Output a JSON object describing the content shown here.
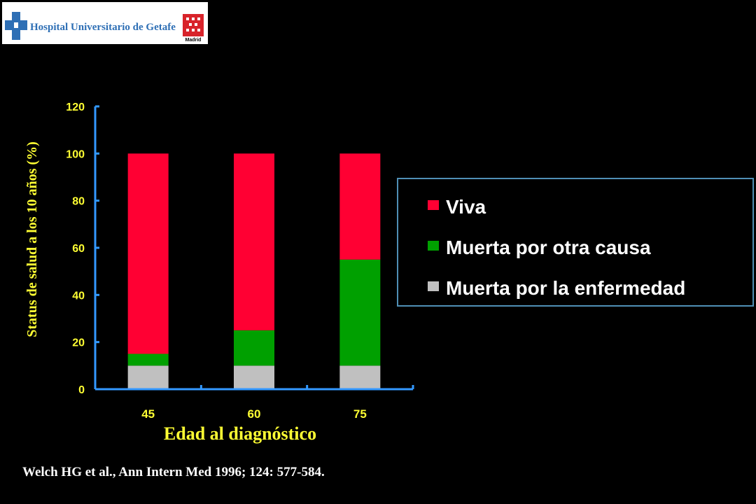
{
  "logo": {
    "text": "Hospital Universitario de Getafe",
    "region_text": "Madrid",
    "colors": {
      "text": "#2e6fb5",
      "cross": "#2e6fb5",
      "madrid_red": "#d8232a"
    }
  },
  "chart_data": {
    "type": "bar",
    "stacked": true,
    "categories": [
      "45",
      "60",
      "75"
    ],
    "series": [
      {
        "name": "Muerta por la enfermedad",
        "color": "#c0c0c0",
        "values": [
          10,
          10,
          10
        ]
      },
      {
        "name": "Muerta por otra causa",
        "color": "#00a000",
        "values": [
          5,
          15,
          45
        ]
      },
      {
        "name": "Viva",
        "color": "#ff0033",
        "values": [
          85,
          75,
          45
        ]
      }
    ],
    "title": "",
    "xlabel": "Edad al diagnóstico",
    "ylabel": "Status de salud a los 10 años (%)",
    "ylim": [
      0,
      120
    ],
    "yticks": [
      "0",
      "20",
      "40",
      "60",
      "80",
      "100",
      "120"
    ],
    "grid": false,
    "legend_position": "right",
    "axis_color": "#3399ff",
    "tick_color": "#ffff33"
  },
  "legend": {
    "items": [
      {
        "label": "Viva",
        "color": "#ff0033"
      },
      {
        "label": "Muerta por otra causa",
        "color": "#00a000"
      },
      {
        "label": "Muerta por la enfermedad",
        "color": "#c0c0c0"
      }
    ],
    "border_color": "#4f8fb5"
  },
  "citation": "Welch HG et al., Ann Intern Med 1996; 124: 577-584."
}
